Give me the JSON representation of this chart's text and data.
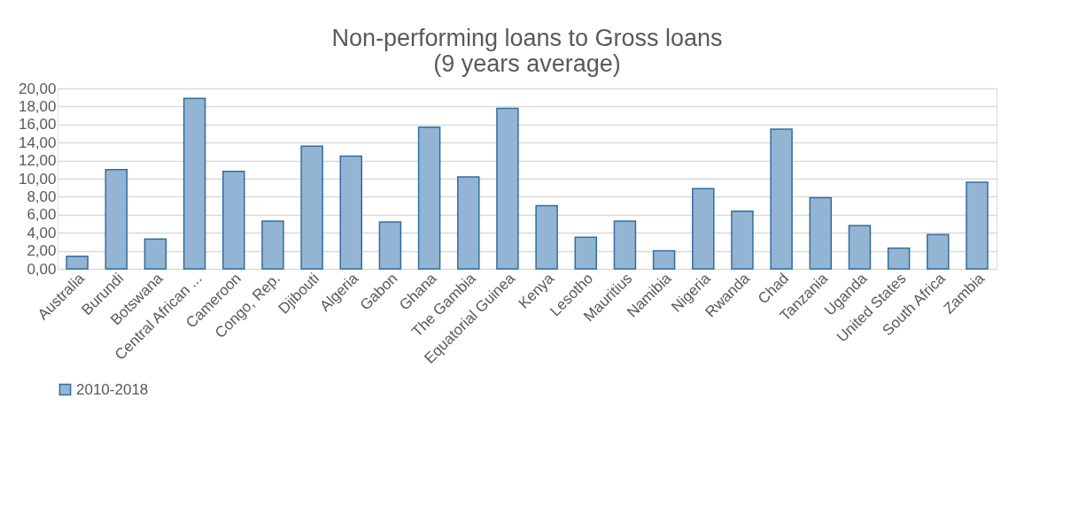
{
  "chart_data": {
    "type": "bar",
    "title": [
      "Non-performing loans to Gross loans",
      "(9 years average)"
    ],
    "categories": [
      "Australia",
      "Burundi",
      "Botswana",
      "Central African ...",
      "Cameroon",
      "Congo, Rep.",
      "Djibouti",
      "Algeria",
      "Gabon",
      "Ghana",
      "The Gambia",
      "Equatorial Guinea",
      "Kenya",
      "Lesotho",
      "Mauritius",
      "Namibia",
      "Nigeria",
      "Rwanda",
      "Chad",
      "Tanzania",
      "Uganda",
      "United States",
      "South Africa",
      "Zambia"
    ],
    "series": [
      {
        "name": "2010-2018",
        "color": "#94b4d4",
        "values": [
          1.4,
          11.0,
          3.3,
          18.9,
          10.8,
          5.3,
          13.6,
          12.5,
          5.2,
          15.7,
          10.2,
          17.8,
          7.0,
          3.5,
          5.3,
          2.0,
          8.9,
          6.4,
          15.5,
          7.9,
          4.8,
          2.3,
          3.8,
          9.6
        ]
      }
    ],
    "ylim": [
      0,
      20
    ],
    "yticks": [
      {
        "value": 0,
        "label": "0,00"
      },
      {
        "value": 2,
        "label": "2,00"
      },
      {
        "value": 4,
        "label": "4,00"
      },
      {
        "value": 6,
        "label": "6,00"
      },
      {
        "value": 8,
        "label": "8,00"
      },
      {
        "value": 10,
        "label": "10,00"
      },
      {
        "value": 12,
        "label": "12,00"
      },
      {
        "value": 14,
        "label": "14,00"
      },
      {
        "value": 16,
        "label": "16,00"
      },
      {
        "value": 18,
        "label": "18,00"
      },
      {
        "value": 20,
        "label": "20,00"
      }
    ],
    "grid": "y",
    "legend": "bottom"
  }
}
